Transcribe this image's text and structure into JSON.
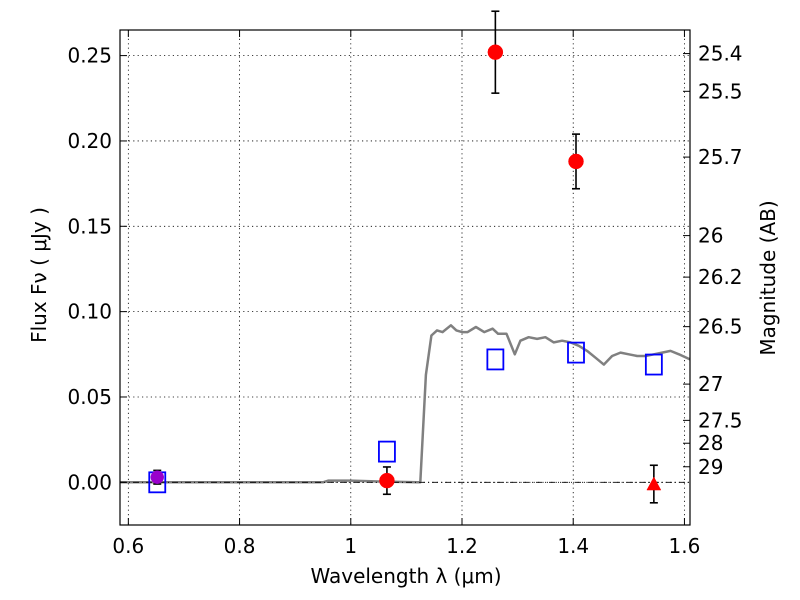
{
  "chart_data": {
    "type": "scatter",
    "xlabel": "Wavelength  λ (μm)",
    "ylabel": "Flux  Fν  ( μJy )",
    "y2label": "Magnitude (AB)",
    "xlim": [
      0.585,
      1.61
    ],
    "ylim": [
      -0.025,
      0.265
    ],
    "grid": true,
    "x_ticks": [
      {
        "value": 0.6,
        "label": "0.6"
      },
      {
        "value": 0.8,
        "label": "0.8"
      },
      {
        "value": 1.0,
        "label": "1"
      },
      {
        "value": 1.2,
        "label": "1.2"
      },
      {
        "value": 1.4,
        "label": "1.4"
      },
      {
        "value": 1.6,
        "label": "1.6"
      }
    ],
    "y_ticks": [
      {
        "value": 0.0,
        "label": "0.00"
      },
      {
        "value": 0.05,
        "label": "0.05"
      },
      {
        "value": 0.1,
        "label": "0.10"
      },
      {
        "value": 0.15,
        "label": "0.15"
      },
      {
        "value": 0.2,
        "label": "0.20"
      },
      {
        "value": 0.25,
        "label": "0.25"
      }
    ],
    "y2_ticks": [
      {
        "mag": 25.4,
        "label": "25.4"
      },
      {
        "mag": 25.5,
        "label": "25.5"
      },
      {
        "mag": 25.7,
        "label": "25.7"
      },
      {
        "mag": 26.0,
        "label": "26"
      },
      {
        "mag": 26.2,
        "label": "26.2"
      },
      {
        "mag": 26.5,
        "label": "26.5"
      },
      {
        "mag": 27.0,
        "label": "27"
      },
      {
        "mag": 27.5,
        "label": "27.5"
      },
      {
        "mag": 28.0,
        "label": "28"
      },
      {
        "mag": 29.0,
        "label": "29"
      }
    ],
    "template_spectrum": {
      "color": "#808080",
      "x": [
        0.585,
        0.95,
        0.96,
        1.0,
        1.05,
        1.12,
        1.125,
        1.135,
        1.145,
        1.155,
        1.165,
        1.18,
        1.19,
        1.2,
        1.21,
        1.225,
        1.24,
        1.255,
        1.265,
        1.28,
        1.295,
        1.305,
        1.32,
        1.335,
        1.35,
        1.365,
        1.38,
        1.395,
        1.41,
        1.425,
        1.44,
        1.455,
        1.47,
        1.485,
        1.5,
        1.515,
        1.53,
        1.545,
        1.56,
        1.575,
        1.59,
        1.61
      ],
      "y": [
        0.0,
        0.0,
        0.001,
        0.001,
        0.0005,
        0.0,
        0.0,
        0.063,
        0.086,
        0.089,
        0.088,
        0.092,
        0.089,
        0.088,
        0.088,
        0.091,
        0.088,
        0.09,
        0.087,
        0.087,
        0.075,
        0.083,
        0.085,
        0.084,
        0.085,
        0.082,
        0.083,
        0.082,
        0.08,
        0.077,
        0.073,
        0.069,
        0.074,
        0.076,
        0.075,
        0.074,
        0.074,
        0.075,
        0.076,
        0.077,
        0.075,
        0.072
      ]
    },
    "observed": {
      "color": "#ff0000",
      "points": [
        {
          "x": 1.065,
          "y": 0.001,
          "yerr": 0.008
        },
        {
          "x": 1.26,
          "y": 0.252,
          "yerr": 0.024
        },
        {
          "x": 1.405,
          "y": 0.188,
          "yerr": 0.016
        }
      ]
    },
    "observed_purple": {
      "color": "#9900cc",
      "points": [
        {
          "x": 0.652,
          "y": 0.003,
          "yerr": 0.004
        }
      ]
    },
    "upper_limit": {
      "color": "#ff0000",
      "points": [
        {
          "x": 1.545,
          "y": -0.001,
          "yerr": 0.011
        }
      ]
    },
    "model": {
      "color": "#0000ff",
      "points": [
        {
          "x": 0.652,
          "y": 0.0
        },
        {
          "x": 1.065,
          "y": 0.018
        },
        {
          "x": 1.26,
          "y": 0.072
        },
        {
          "x": 1.405,
          "y": 0.076
        },
        {
          "x": 1.545,
          "y": 0.069
        }
      ]
    }
  }
}
